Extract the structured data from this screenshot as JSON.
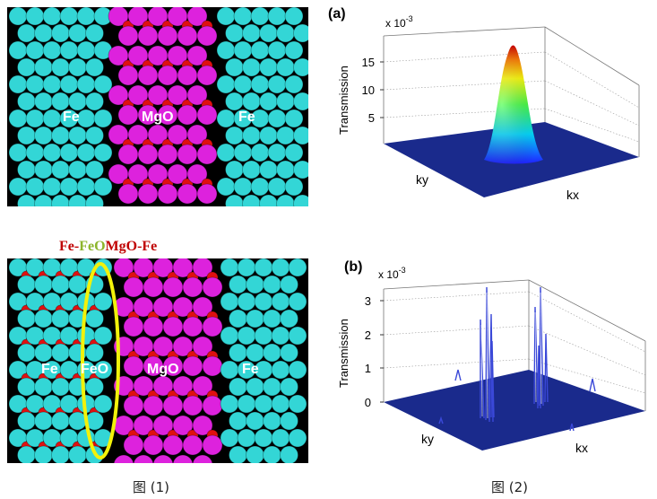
{
  "fig1": {
    "caption": "图 (1)",
    "top": {
      "labels": {
        "left": "Fe",
        "middle": "MgO",
        "right": "Fe"
      }
    },
    "bottom": {
      "labels": {
        "left": "Fe",
        "interface": "FeO",
        "middle": "MgO",
        "right": "Fe"
      },
      "title_parts": [
        {
          "text": "Fe-",
          "color": "#c00000"
        },
        {
          "text": "FeO",
          "color": "#8db52c"
        },
        {
          "text": "MgO-Fe",
          "color": "#c00000"
        }
      ]
    },
    "colors": {
      "fe": "#33d6d6",
      "mgo": "#dd22dd",
      "oxygen": "#e01010",
      "highlight": "#f2f20a",
      "background": "#000000"
    }
  },
  "fig2": {
    "caption": "图 (2)",
    "a": {
      "panel_label": "(a)",
      "scale_text": "x 10",
      "scale_exp": "-3",
      "zlabel": "Transmission",
      "ticks": [
        "15",
        "10",
        "5"
      ],
      "xlabel": "ky",
      "ylabel": "kx"
    },
    "b": {
      "panel_label": "(b)",
      "scale_text": "x 10",
      "scale_exp": "-3",
      "zlabel": "Transmission",
      "ticks": [
        "3",
        "2",
        "1",
        "0"
      ],
      "xlabel": "ky",
      "ylabel": "kx"
    }
  }
}
